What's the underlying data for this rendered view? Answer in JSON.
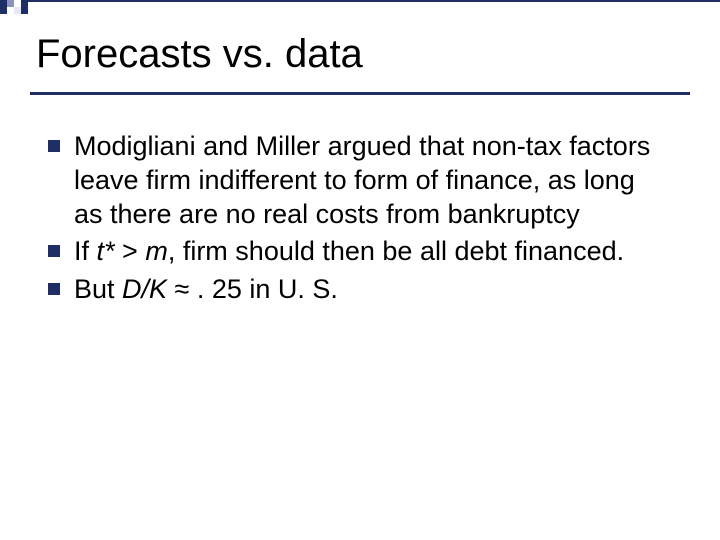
{
  "slide": {
    "title": "Forecasts vs. data",
    "title_fontsize": 40,
    "title_color": "#000000",
    "underline_color": "#1f2f66",
    "background_color": "#ffffff",
    "accent_colors": {
      "dark": "#1f2f66",
      "mid": "#8a94c0",
      "light": "#e6e9f5"
    },
    "bullets": [
      {
        "text": "Modigliani and Miller argued that non-tax factors leave firm indifferent to form of finance, as long as there are no real costs from bankruptcy"
      },
      {
        "prefix": "If ",
        "italic1": "t*",
        "mid1": " > ",
        "italic2": "m",
        "suffix": ", firm should then be all debt financed."
      },
      {
        "prefix": "But ",
        "italic1": "D/K",
        "suffix": " ≈ . 25 in U. S."
      }
    ],
    "bullet_fontsize": 27,
    "bullet_marker_color": "#1f2f66",
    "bullet_marker_size": 12
  }
}
